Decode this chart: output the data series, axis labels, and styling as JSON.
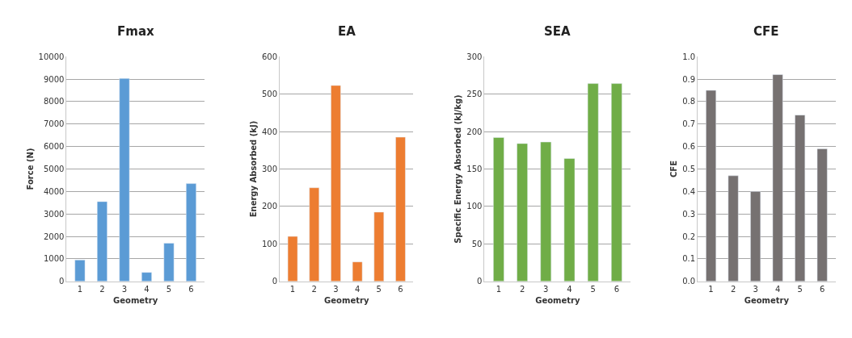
{
  "chart_data": [
    {
      "type": "bar",
      "title": "Fmax",
      "xlabel": "Geometry",
      "ylabel": "Force (N)",
      "categories": [
        "1",
        "2",
        "3",
        "4",
        "5",
        "6"
      ],
      "values": [
        950,
        3550,
        9030,
        400,
        1700,
        4350
      ],
      "color": "#5b9bd5",
      "ylim": [
        0,
        10000
      ],
      "yticks": [
        0,
        1000,
        2000,
        3000,
        4000,
        5000,
        6000,
        7000,
        8000,
        9000,
        10000
      ],
      "grid": "y"
    },
    {
      "type": "bar",
      "title": "EA",
      "xlabel": "Geometry",
      "ylabel": "Energy Absorbed (kJ)",
      "categories": [
        "1",
        "2",
        "3",
        "4",
        "5",
        "6"
      ],
      "values": [
        120,
        250,
        523,
        52,
        185,
        385
      ],
      "color": "#ed7d31",
      "ylim": [
        0,
        600
      ],
      "yticks": [
        0,
        100,
        200,
        300,
        400,
        500,
        600
      ],
      "grid": "y"
    },
    {
      "type": "bar",
      "title": "SEA",
      "xlabel": "Geometry",
      "ylabel": "Specific Energy Absorbed (kJ/kg)",
      "categories": [
        "1",
        "2",
        "3",
        "4",
        "5",
        "6"
      ],
      "values": [
        192,
        184,
        186,
        164,
        264,
        264
      ],
      "color": "#70ad47",
      "ylim": [
        0,
        300
      ],
      "yticks": [
        0,
        50,
        100,
        150,
        200,
        250,
        300
      ],
      "grid": "y"
    },
    {
      "type": "bar",
      "title": "CFE",
      "xlabel": "Geometry",
      "ylabel": "CFE",
      "categories": [
        "1",
        "2",
        "3",
        "4",
        "5",
        "6"
      ],
      "values": [
        0.85,
        0.47,
        0.4,
        0.92,
        0.74,
        0.59
      ],
      "color": "#767171",
      "ylim": [
        0,
        1.0
      ],
      "yticks": [
        {
          "value": 0,
          "label": "0.0"
        },
        0.1,
        0.2,
        0.3,
        0.4,
        0.5,
        0.6,
        0.7,
        0.8,
        0.9,
        {
          "value": 1.0,
          "label": "1.0"
        }
      ],
      "grid": "y"
    }
  ]
}
